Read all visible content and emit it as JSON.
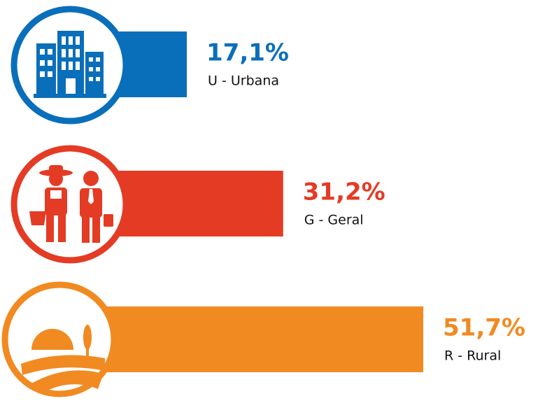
{
  "chart_data": {
    "type": "bar",
    "categories": [
      "U - Urbana",
      "G - Geral",
      "R - Rural"
    ],
    "values": [
      17.1,
      31.2,
      51.7
    ],
    "value_labels": [
      "17,1%",
      "31,2%",
      "51,7%"
    ],
    "colors": [
      "#0a6fba",
      "#e43b25",
      "#f18a21"
    ]
  }
}
